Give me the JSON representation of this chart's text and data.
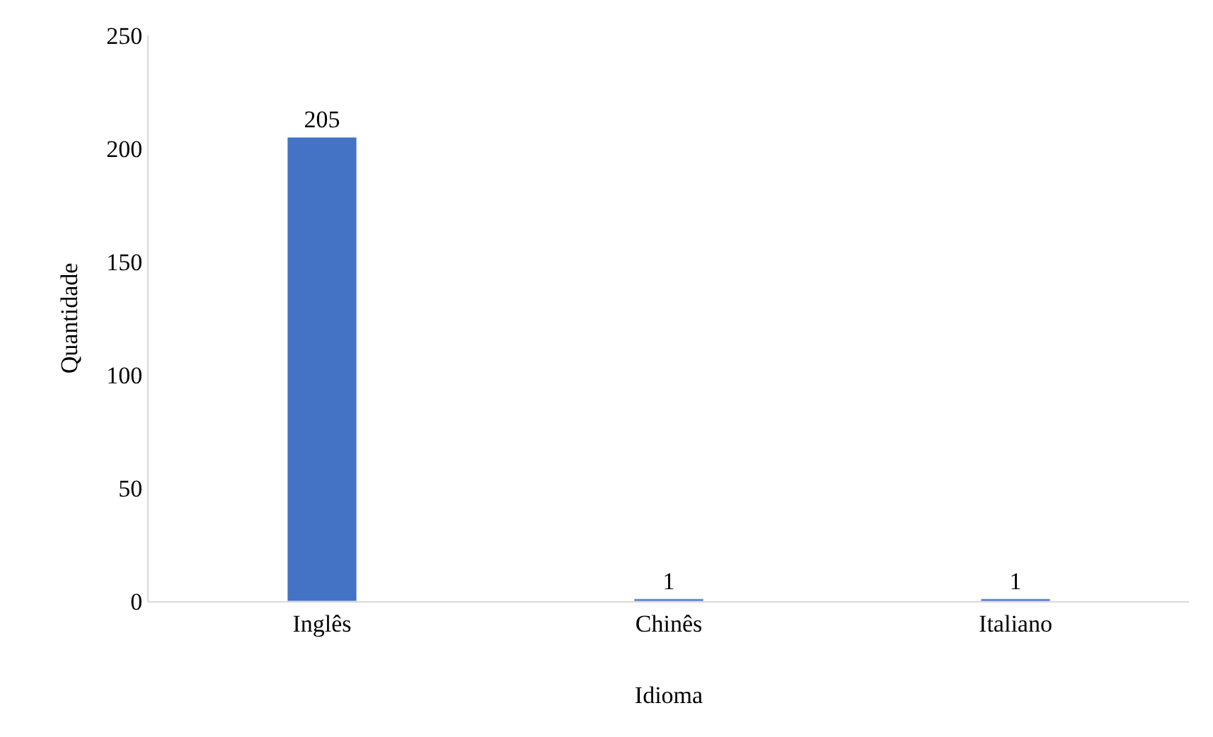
{
  "chart_data": {
    "type": "bar",
    "xlabel": "Idioma",
    "ylabel": "Quantidade",
    "categories": [
      "Inglês",
      "Chinês",
      "Italiano"
    ],
    "values": [
      205,
      1,
      1
    ],
    "color": "#4472c4",
    "ylim": [
      0,
      250
    ],
    "yticks": [
      0,
      50,
      100,
      150,
      200,
      250
    ],
    "grid": false,
    "legend": false,
    "data_labels": true
  }
}
